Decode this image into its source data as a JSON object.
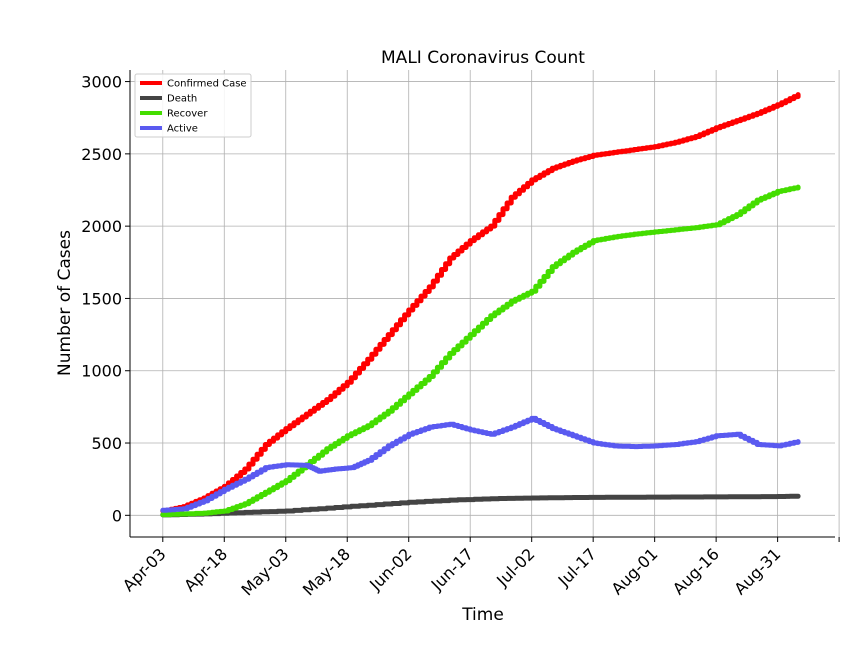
{
  "chart_data": {
    "type": "line",
    "title": "MALI Coronavirus Count",
    "xlabel": "Time",
    "ylabel": "Number of Cases",
    "x_ticks": [
      "Apr-03",
      "Apr-18",
      "May-03",
      "May-18",
      "Jun-02",
      "Jun-17",
      "Jul-02",
      "Jul-17",
      "Aug-01",
      "Aug-16",
      "Aug-31"
    ],
    "y_ticks": [
      0,
      500,
      1000,
      1500,
      2000,
      2500,
      3000
    ],
    "x_range_days_from_first_tick": [
      -8,
      164
    ],
    "ylim": [
      -150,
      3080
    ],
    "grid": true,
    "legend_position": "top-left",
    "series": [
      {
        "name": "Confirmed Case",
        "color": "#ff0000",
        "points": [
          [
            0,
            30
          ],
          [
            5,
            60
          ],
          [
            10,
            120
          ],
          [
            15,
            200
          ],
          [
            20,
            320
          ],
          [
            25,
            490
          ],
          [
            30,
            600
          ],
          [
            35,
            700
          ],
          [
            40,
            800
          ],
          [
            45,
            920
          ],
          [
            50,
            1080
          ],
          [
            55,
            1250
          ],
          [
            60,
            1420
          ],
          [
            65,
            1580
          ],
          [
            70,
            1780
          ],
          [
            75,
            1900
          ],
          [
            80,
            2000
          ],
          [
            85,
            2200
          ],
          [
            90,
            2320
          ],
          [
            95,
            2400
          ],
          [
            100,
            2450
          ],
          [
            105,
            2490
          ],
          [
            110,
            2510
          ],
          [
            115,
            2530
          ],
          [
            120,
            2550
          ],
          [
            125,
            2580
          ],
          [
            130,
            2620
          ],
          [
            135,
            2680
          ],
          [
            140,
            2730
          ],
          [
            145,
            2780
          ],
          [
            150,
            2840
          ],
          [
            155,
            2910
          ]
        ]
      },
      {
        "name": "Death",
        "color": "#444444",
        "points": [
          [
            0,
            3
          ],
          [
            10,
            10
          ],
          [
            20,
            20
          ],
          [
            30,
            30
          ],
          [
            40,
            50
          ],
          [
            50,
            70
          ],
          [
            60,
            90
          ],
          [
            70,
            105
          ],
          [
            80,
            115
          ],
          [
            90,
            120
          ],
          [
            100,
            123
          ],
          [
            110,
            125
          ],
          [
            120,
            126
          ],
          [
            130,
            127
          ],
          [
            140,
            128
          ],
          [
            150,
            130
          ],
          [
            155,
            132
          ]
        ]
      },
      {
        "name": "Recover",
        "color": "#44dd00",
        "points": [
          [
            0,
            5
          ],
          [
            10,
            15
          ],
          [
            15,
            30
          ],
          [
            20,
            80
          ],
          [
            25,
            160
          ],
          [
            30,
            240
          ],
          [
            35,
            350
          ],
          [
            40,
            460
          ],
          [
            45,
            550
          ],
          [
            50,
            620
          ],
          [
            55,
            720
          ],
          [
            60,
            840
          ],
          [
            65,
            960
          ],
          [
            70,
            1120
          ],
          [
            75,
            1250
          ],
          [
            80,
            1380
          ],
          [
            85,
            1480
          ],
          [
            90,
            1550
          ],
          [
            95,
            1720
          ],
          [
            100,
            1820
          ],
          [
            105,
            1900
          ],
          [
            110,
            1925
          ],
          [
            115,
            1945
          ],
          [
            120,
            1960
          ],
          [
            125,
            1975
          ],
          [
            130,
            1990
          ],
          [
            135,
            2010
          ],
          [
            140,
            2080
          ],
          [
            145,
            2180
          ],
          [
            150,
            2240
          ],
          [
            155,
            2270
          ]
        ]
      },
      {
        "name": "Active",
        "color": "#5a5af0",
        "points": [
          [
            0,
            35
          ],
          [
            5,
            45
          ],
          [
            10,
            100
          ],
          [
            15,
            180
          ],
          [
            20,
            250
          ],
          [
            25,
            330
          ],
          [
            30,
            350
          ],
          [
            35,
            345
          ],
          [
            38,
            305
          ],
          [
            42,
            320
          ],
          [
            46,
            330
          ],
          [
            50,
            380
          ],
          [
            55,
            480
          ],
          [
            60,
            560
          ],
          [
            65,
            610
          ],
          [
            70,
            630
          ],
          [
            75,
            590
          ],
          [
            80,
            560
          ],
          [
            85,
            610
          ],
          [
            90,
            670
          ],
          [
            95,
            600
          ],
          [
            100,
            550
          ],
          [
            105,
            500
          ],
          [
            110,
            480
          ],
          [
            115,
            475
          ],
          [
            120,
            480
          ],
          [
            125,
            490
          ],
          [
            130,
            510
          ],
          [
            135,
            550
          ],
          [
            140,
            560
          ],
          [
            145,
            490
          ],
          [
            150,
            480
          ],
          [
            155,
            510
          ]
        ]
      }
    ]
  }
}
